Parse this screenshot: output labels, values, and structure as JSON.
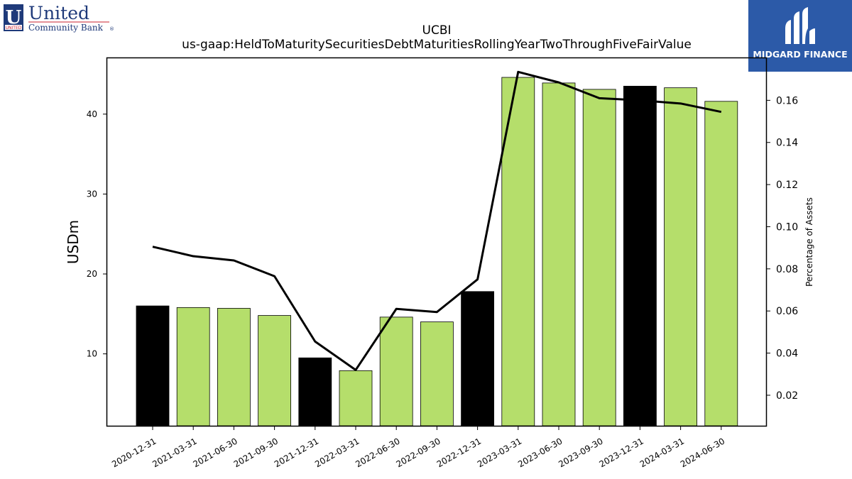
{
  "logos": {
    "left": {
      "name_line1": "United",
      "name_line2": "Community Bank",
      "badge_letter": "U",
      "badge_text": "UNITED",
      "trademark": "®"
    },
    "right": {
      "brand": "MIDGARD FINANCE"
    }
  },
  "colors": {
    "bar_default": "#b5de6b",
    "bar_highlight": "#000000",
    "line": "#000000",
    "logo_blue": "#1f3a7a",
    "logo_red": "#c8202f",
    "midgard_bg": "#2c5aa8"
  },
  "chart_data": {
    "type": "bar",
    "title": "UCBI",
    "subtitle": "us-gaap:HeldToMaturitySecuritiesDebtMaturitiesRollingYearTwoThroughFiveFairValue",
    "ylabel": "USDm",
    "y2label": "Percentage of Assets",
    "categories": [
      "2020-12-31",
      "2021-03-31",
      "2021-06-30",
      "2021-09-30",
      "2021-12-31",
      "2022-03-31",
      "2022-06-30",
      "2022-09-30",
      "2022-12-31",
      "2023-03-31",
      "2023-06-30",
      "2023-09-30",
      "2023-12-31",
      "2024-03-31",
      "2024-06-30"
    ],
    "values": [
      16.0,
      15.8,
      15.7,
      14.8,
      9.5,
      7.9,
      14.6,
      14.0,
      17.8,
      44.6,
      43.9,
      43.1,
      43.5,
      43.3,
      41.6
    ],
    "highlight": [
      true,
      false,
      false,
      false,
      true,
      false,
      false,
      false,
      true,
      false,
      false,
      false,
      true,
      false,
      false
    ],
    "line_values": [
      0.0905,
      0.086,
      0.084,
      0.0765,
      0.0455,
      0.032,
      0.061,
      0.0595,
      0.075,
      0.1735,
      0.1685,
      0.161,
      0.16,
      0.1585,
      0.1545
    ],
    "ylim": [
      1.0,
      47.0
    ],
    "y2lim": [
      0.0055,
      0.18
    ],
    "yticks": [
      10,
      20,
      30,
      40
    ],
    "y2ticks": [
      0.02,
      0.04,
      0.06,
      0.08,
      0.1,
      0.12,
      0.14,
      0.16
    ],
    "y2tick_labels": [
      "0.02",
      "0.04",
      "0.06",
      "0.08",
      "0.10",
      "0.12",
      "0.14",
      "0.16"
    ],
    "grid": false,
    "legend": "none"
  }
}
